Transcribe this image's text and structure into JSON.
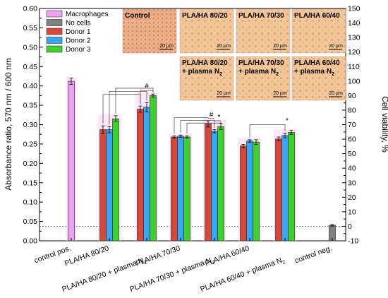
{
  "chart_data": {
    "type": "bar",
    "ylabel": "Absorbance ratio, 570 nm / 600 nm",
    "y2label": "Cell viability, %",
    "ylim": [
      0,
      0.6
    ],
    "y2lim": [
      -10,
      150
    ],
    "yticks": [
      "0.00",
      "0.05",
      "0.10",
      "0.15",
      "0.20",
      "0.25",
      "0.30",
      "0.35",
      "0.40",
      "0.45",
      "0.50",
      "0.55",
      "0.60"
    ],
    "y2ticks": [
      "-10",
      "0",
      "10",
      "20",
      "30",
      "40",
      "50",
      "60",
      "70",
      "80",
      "90",
      "100",
      "110",
      "120",
      "130",
      "140",
      "150"
    ],
    "reference_line": 0.037,
    "categories": [
      "control pos.",
      "PLA/HA 80/20",
      "PLA/HA 80/20 + plasma N",
      "PLA/HA 70/30",
      "PLA/HA 70/30 + plasma N",
      "PLA/HA 60/40",
      "PLA/HA 60/40 + plasma N",
      "control neg."
    ],
    "category_subscript": [
      "",
      "",
      "2",
      "",
      "2",
      "",
      "2",
      ""
    ],
    "series": [
      {
        "name": "Macrophages",
        "color": "#f0a0f0",
        "values": [
          0.412,
          null,
          null,
          null,
          null,
          null,
          null,
          null
        ],
        "errors": [
          0.008,
          null,
          null,
          null,
          null,
          null,
          null,
          null
        ]
      },
      {
        "name": "No cells",
        "color": "#808080",
        "values": [
          null,
          null,
          null,
          null,
          null,
          null,
          null,
          0.04
        ],
        "errors": [
          null,
          null,
          null,
          null,
          null,
          null,
          null,
          0.002
        ]
      },
      {
        "name": "Donor 1",
        "color": "#d9463c",
        "values": [
          null,
          0.287,
          0.34,
          0.268,
          0.302,
          0.245,
          0.263,
          null
        ],
        "errors": [
          null,
          0.01,
          0.008,
          0.003,
          0.008,
          0.004,
          0.005,
          null
        ]
      },
      {
        "name": "Donor 2",
        "color": "#3aa5f0",
        "values": [
          null,
          0.287,
          0.345,
          0.27,
          0.283,
          0.258,
          0.272,
          null
        ],
        "errors": [
          null,
          0.008,
          0.012,
          0.003,
          0.004,
          0.003,
          0.006,
          null
        ]
      },
      {
        "name": "Donor 3",
        "color": "#3ed12e",
        "values": [
          null,
          0.315,
          0.375,
          0.268,
          0.295,
          0.255,
          0.28,
          null
        ],
        "errors": [
          null,
          0.008,
          0.004,
          0.003,
          0.008,
          0.006,
          0.005,
          null
        ]
      }
    ],
    "images": [
      {
        "title": "Control",
        "sub": "",
        "scale": "20 µm"
      },
      {
        "title": "PLA/HA 80/20",
        "sub": "",
        "scale": "20 µm"
      },
      {
        "title": "PLA/HA 70/30",
        "sub": "",
        "scale": "20 µm"
      },
      {
        "title": "PLA/HA 60/40",
        "sub": "",
        "scale": "20 µm"
      },
      {
        "title": "PLA/HA 80/20",
        "sub": "+ plasma N",
        "subscript": "2",
        "scale": "20 µm"
      },
      {
        "title": "PLA/HA 70/30",
        "sub": "+ plasma N",
        "subscript": "2",
        "scale": "20 µm"
      },
      {
        "title": "PLA/HA 60/40",
        "sub": "+ plasma N",
        "subscript": "2",
        "scale": "20 µm"
      }
    ],
    "significance_marks": [
      "#",
      "#",
      "*",
      "*"
    ]
  }
}
